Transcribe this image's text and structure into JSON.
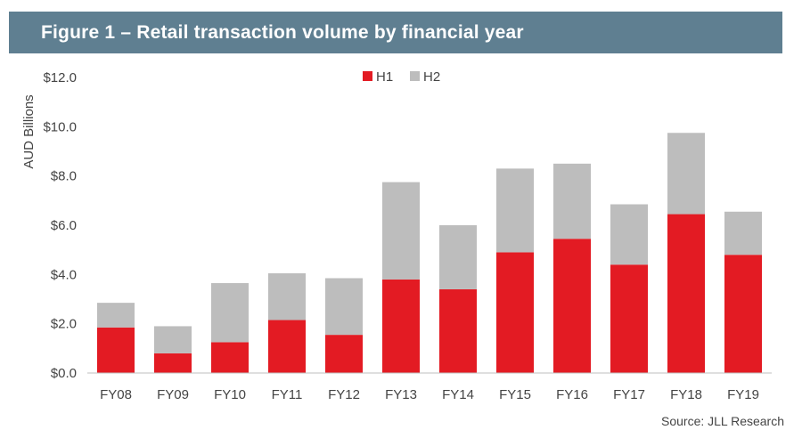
{
  "header": {
    "title": "Figure 1 – Retail transaction volume by financial year"
  },
  "footer": {
    "source": "Source: JLL Research"
  },
  "colors": {
    "h1": "#e31b23",
    "h2": "#bdbdbd",
    "title_bg": "#5f7f91"
  },
  "chart_data": {
    "type": "bar",
    "stacked": true,
    "ylabel": "AUD Billions",
    "ylim": [
      0,
      12
    ],
    "yticks": [
      0,
      2,
      4,
      6,
      8,
      10,
      12
    ],
    "ytick_labels": [
      "$0.0",
      "$2.0",
      "$4.0",
      "$6.0",
      "$8.0",
      "$10.0",
      "$12.0"
    ],
    "grid": false,
    "legend": "top-center",
    "categories": [
      "FY08",
      "FY09",
      "FY10",
      "FY11",
      "FY12",
      "FY13",
      "FY14",
      "FY15",
      "FY16",
      "FY17",
      "FY18",
      "FY19"
    ],
    "series": [
      {
        "name": "H1",
        "color": "#e31b23",
        "values": [
          1.85,
          0.8,
          1.25,
          2.15,
          1.55,
          3.8,
          3.4,
          4.9,
          5.45,
          4.4,
          6.45,
          4.8
        ]
      },
      {
        "name": "H2",
        "color": "#bdbdbd",
        "values": [
          1.0,
          1.1,
          2.4,
          1.9,
          2.3,
          3.95,
          2.6,
          3.4,
          3.05,
          2.45,
          3.3,
          1.75
        ]
      }
    ]
  }
}
